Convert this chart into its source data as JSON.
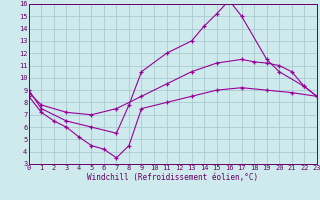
{
  "xlabel": "Windchill (Refroidissement éolien,°C)",
  "xlim": [
    0,
    23
  ],
  "ylim": [
    3,
    16
  ],
  "xticks": [
    0,
    1,
    2,
    3,
    4,
    5,
    6,
    7,
    8,
    9,
    10,
    11,
    12,
    13,
    14,
    15,
    16,
    17,
    18,
    19,
    20,
    21,
    22,
    23
  ],
  "yticks": [
    3,
    4,
    5,
    6,
    7,
    8,
    9,
    10,
    11,
    12,
    13,
    14,
    15,
    16
  ],
  "background_color": "#ceeaed",
  "grid_color": "#aacdd2",
  "line_color": "#990099",
  "lines": [
    {
      "x": [
        0,
        1,
        3,
        5,
        7,
        8,
        9,
        11,
        13,
        14,
        15,
        16,
        17,
        19,
        20,
        22,
        23
      ],
      "y": [
        9,
        7.5,
        6.5,
        6.0,
        5.5,
        7.8,
        10.5,
        12.0,
        13.0,
        14.2,
        15.2,
        16.3,
        15.0,
        11.5,
        10.5,
        9.3,
        8.5
      ]
    },
    {
      "x": [
        0,
        1,
        3,
        5,
        7,
        9,
        11,
        13,
        15,
        17,
        18,
        19,
        20,
        21,
        22,
        23
      ],
      "y": [
        8.8,
        7.8,
        7.2,
        7.0,
        7.5,
        8.5,
        9.5,
        10.5,
        11.2,
        11.5,
        11.3,
        11.2,
        11.0,
        10.5,
        9.3,
        8.5
      ]
    },
    {
      "x": [
        0,
        1,
        2,
        3,
        4,
        5,
        6,
        7,
        8,
        9,
        11,
        13,
        15,
        17,
        19,
        21,
        23
      ],
      "y": [
        8.5,
        7.2,
        6.5,
        6.0,
        5.2,
        4.5,
        4.2,
        3.5,
        4.5,
        7.5,
        8.0,
        8.5,
        9.0,
        9.2,
        9.0,
        8.8,
        8.5
      ]
    }
  ]
}
